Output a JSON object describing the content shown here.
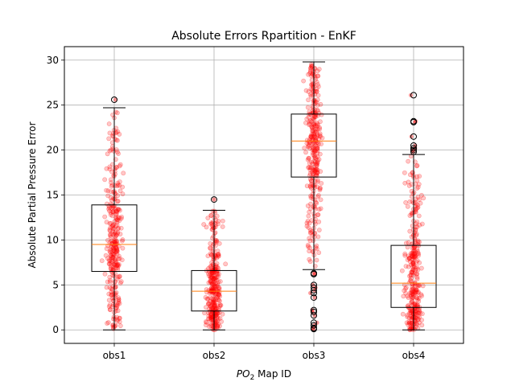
{
  "chart_data": {
    "type": "box",
    "title": "Absolute Errors Rpartition - EnKF",
    "xlabel": {
      "prefix": "PO",
      "subscript": "2",
      "suffix": " Map ID"
    },
    "ylabel": "Absolute Partial Pressure Error",
    "ylim": [
      -1.5,
      31.5
    ],
    "yticks": [
      0,
      5,
      10,
      15,
      20,
      25,
      30
    ],
    "grid": true,
    "categories": [
      "obs1",
      "obs2",
      "obs3",
      "obs4"
    ],
    "boxes": [
      {
        "name": "obs1",
        "q1": 6.5,
        "median": 9.5,
        "q3": 13.9,
        "whisker_low": 0.0,
        "whisker_high": 24.7,
        "outliers": [
          25.6
        ]
      },
      {
        "name": "obs2",
        "q1": 2.1,
        "median": 4.3,
        "q3": 6.6,
        "whisker_low": 0.0,
        "whisker_high": 13.3,
        "outliers": [
          14.5
        ]
      },
      {
        "name": "obs3",
        "q1": 17.0,
        "median": 21.0,
        "q3": 24.0,
        "whisker_low": 6.7,
        "whisker_high": 29.8,
        "outliers": [
          6.3,
          6.2,
          5.0,
          4.7,
          4.4,
          4.1,
          3.6,
          2.2,
          2.0,
          1.6,
          0.8,
          0.5,
          0.2,
          0.1
        ]
      },
      {
        "name": "obs4",
        "q1": 2.5,
        "median": 5.2,
        "q3": 9.4,
        "whisker_low": 0.0,
        "whisker_high": 19.5,
        "outliers": [
          19.8,
          20.0,
          20.2,
          20.5,
          21.5,
          23.1,
          23.2,
          26.1
        ]
      }
    ],
    "jitter_points_per_category": 320,
    "colors": {
      "box": "#000000",
      "median": "#ff7f0e",
      "points": "#ff0000",
      "grid": "#b0b0b0"
    }
  }
}
